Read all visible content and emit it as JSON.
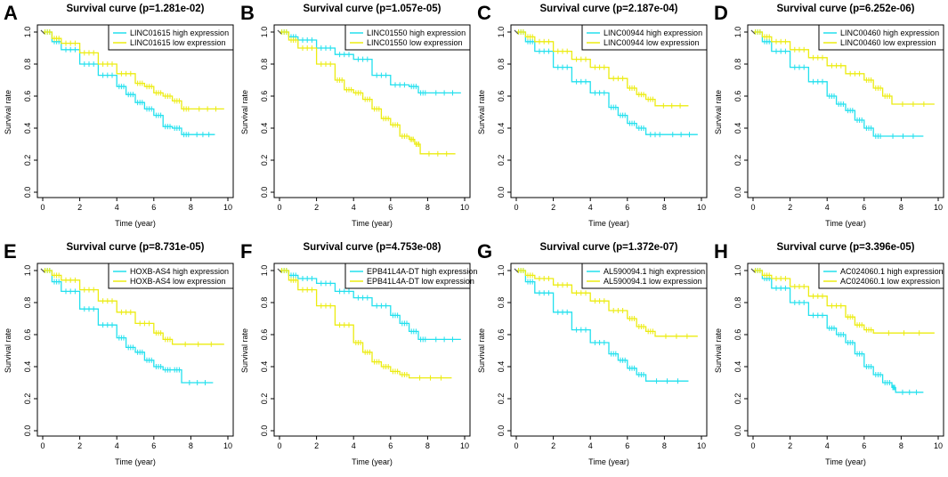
{
  "colors": {
    "high": "#22e0ee",
    "low": "#ecec10",
    "axis": "#000000"
  },
  "chart_data": [
    {
      "panel": "A",
      "type": "line",
      "title": "Survival curve (p=1.281e-02)",
      "xlabel": "Time (year)",
      "ylabel": "Survival rate",
      "xlim": [
        0,
        10
      ],
      "ylim": [
        0,
        1
      ],
      "xticks": [
        "0",
        "2",
        "4",
        "6",
        "8",
        "10"
      ],
      "yticks": [
        "0.0",
        "0.2",
        "0.4",
        "0.6",
        "0.8",
        "1.0"
      ],
      "legend_position": "top-right",
      "series": [
        {
          "name": "LINC01615 high expression",
          "color": "#22e0ee",
          "x": [
            0,
            0.5,
            1,
            2,
            3,
            4,
            4.5,
            5,
            5.5,
            6,
            6.5,
            7,
            7.5,
            8,
            9.3
          ],
          "y": [
            1.0,
            0.94,
            0.89,
            0.8,
            0.73,
            0.66,
            0.61,
            0.56,
            0.52,
            0.48,
            0.41,
            0.4,
            0.36,
            0.36,
            0.36
          ]
        },
        {
          "name": "LINC01615 low expression",
          "color": "#ecec10",
          "x": [
            0,
            0.5,
            1,
            2,
            3,
            4,
            5,
            5.5,
            6,
            6.5,
            7,
            7.5,
            8,
            9.8
          ],
          "y": [
            1.0,
            0.96,
            0.93,
            0.87,
            0.8,
            0.74,
            0.68,
            0.66,
            0.62,
            0.6,
            0.57,
            0.52,
            0.52,
            0.52
          ]
        }
      ]
    },
    {
      "panel": "B",
      "type": "line",
      "title": "Survival curve (p=1.057e-05)",
      "xlabel": "Time (year)",
      "ylabel": "Survival rate",
      "xlim": [
        0,
        10
      ],
      "ylim": [
        0,
        1
      ],
      "xticks": [
        "0",
        "2",
        "4",
        "6",
        "8",
        "10"
      ],
      "yticks": [
        "0.0",
        "0.2",
        "0.4",
        "0.6",
        "0.8",
        "1.0"
      ],
      "legend_position": "top-right",
      "series": [
        {
          "name": "LINC01550 high expression",
          "color": "#22e0ee",
          "x": [
            0,
            0.5,
            1,
            2,
            3,
            4,
            5,
            6,
            7,
            7.5,
            8,
            9.8
          ],
          "y": [
            1.0,
            0.97,
            0.95,
            0.9,
            0.86,
            0.83,
            0.73,
            0.67,
            0.66,
            0.62,
            0.62,
            0.62
          ]
        },
        {
          "name": "LINC01550 low expression",
          "color": "#ecec10",
          "x": [
            0,
            0.5,
            1,
            2,
            3,
            3.5,
            4,
            4.5,
            5,
            5.5,
            6,
            6.5,
            7,
            7.3,
            7.6,
            9.5
          ],
          "y": [
            1.0,
            0.95,
            0.9,
            0.8,
            0.7,
            0.64,
            0.62,
            0.58,
            0.52,
            0.46,
            0.42,
            0.35,
            0.33,
            0.3,
            0.24,
            0.24
          ]
        }
      ]
    },
    {
      "panel": "C",
      "type": "line",
      "title": "Survival curve (p=2.187e-04)",
      "xlabel": "Time (year)",
      "ylabel": "Survival rate",
      "xlim": [
        0,
        10
      ],
      "ylim": [
        0,
        1
      ],
      "xticks": [
        "0",
        "2",
        "4",
        "6",
        "8",
        "10"
      ],
      "yticks": [
        "0.0",
        "0.2",
        "0.4",
        "0.6",
        "0.8",
        "1.0"
      ],
      "legend_position": "top-right",
      "series": [
        {
          "name": "LINC00944 high expression",
          "color": "#22e0ee",
          "x": [
            0,
            0.5,
            1,
            2,
            3,
            4,
            5,
            5.5,
            6,
            6.5,
            7,
            8,
            9.8
          ],
          "y": [
            1.0,
            0.94,
            0.88,
            0.78,
            0.69,
            0.62,
            0.53,
            0.48,
            0.43,
            0.4,
            0.36,
            0.36,
            0.36
          ]
        },
        {
          "name": "LINC00944 low expression",
          "color": "#ecec10",
          "x": [
            0,
            0.5,
            1,
            2,
            3,
            4,
            5,
            6,
            6.5,
            7,
            7.5,
            9.3
          ],
          "y": [
            1.0,
            0.97,
            0.94,
            0.88,
            0.83,
            0.78,
            0.71,
            0.65,
            0.61,
            0.58,
            0.54,
            0.54
          ]
        }
      ]
    },
    {
      "panel": "D",
      "type": "line",
      "title": "Survival curve (p=6.252e-06)",
      "xlabel": "Time (year)",
      "ylabel": "Survival rate",
      "xlim": [
        0,
        10
      ],
      "ylim": [
        0,
        1
      ],
      "xticks": [
        "0",
        "2",
        "4",
        "6",
        "8",
        "10"
      ],
      "yticks": [
        "0.0",
        "0.2",
        "0.4",
        "0.6",
        "0.8",
        "1.0"
      ],
      "legend_position": "top-right",
      "series": [
        {
          "name": "LINC00460 high expression",
          "color": "#22e0ee",
          "x": [
            0,
            0.5,
            1,
            2,
            3,
            4,
            4.5,
            5,
            5.5,
            6,
            6.5,
            7,
            9.2
          ],
          "y": [
            1.0,
            0.94,
            0.88,
            0.78,
            0.69,
            0.6,
            0.55,
            0.51,
            0.45,
            0.4,
            0.35,
            0.35,
            0.35
          ]
        },
        {
          "name": "LINC00460 low expression",
          "color": "#ecec10",
          "x": [
            0,
            0.5,
            1,
            2,
            3,
            4,
            5,
            6,
            6.5,
            7,
            7.5,
            9.8
          ],
          "y": [
            1.0,
            0.97,
            0.94,
            0.89,
            0.84,
            0.79,
            0.74,
            0.7,
            0.65,
            0.6,
            0.55,
            0.55
          ]
        }
      ]
    },
    {
      "panel": "E",
      "type": "line",
      "title": "Survival curve (p=8.731e-05)",
      "xlabel": "Time (year)",
      "ylabel": "Survival rate",
      "xlim": [
        0,
        10
      ],
      "ylim": [
        0,
        1
      ],
      "xticks": [
        "0",
        "2",
        "4",
        "6",
        "8",
        "10"
      ],
      "yticks": [
        "0.0",
        "0.2",
        "0.4",
        "0.6",
        "0.8",
        "1.0"
      ],
      "legend_position": "top-right",
      "series": [
        {
          "name": "HOXB-AS4 high expression",
          "color": "#22e0ee",
          "x": [
            0,
            0.5,
            1,
            2,
            3,
            4,
            4.5,
            5,
            5.5,
            6,
            6.5,
            7,
            7.5,
            9.2
          ],
          "y": [
            1.0,
            0.93,
            0.87,
            0.76,
            0.66,
            0.58,
            0.52,
            0.49,
            0.44,
            0.4,
            0.38,
            0.38,
            0.3,
            0.3
          ]
        },
        {
          "name": "HOXB-AS4 low expression",
          "color": "#ecec10",
          "x": [
            0,
            0.5,
            1,
            2,
            3,
            4,
            5,
            6,
            6.5,
            7,
            9.8
          ],
          "y": [
            1.0,
            0.97,
            0.94,
            0.88,
            0.81,
            0.74,
            0.67,
            0.61,
            0.57,
            0.54,
            0.54
          ]
        }
      ]
    },
    {
      "panel": "F",
      "type": "line",
      "title": "Survival curve (p=4.753e-08)",
      "xlabel": "Time (year)",
      "ylabel": "Survival rate",
      "xlim": [
        0,
        10
      ],
      "ylim": [
        0,
        1
      ],
      "xticks": [
        "0",
        "2",
        "4",
        "6",
        "8",
        "10"
      ],
      "yticks": [
        "0.0",
        "0.2",
        "0.4",
        "0.6",
        "0.8",
        "1.0"
      ],
      "legend_position": "top-right",
      "series": [
        {
          "name": "EPB41L4A-DT high expression",
          "color": "#22e0ee",
          "x": [
            0,
            0.5,
            1,
            2,
            3,
            4,
            5,
            6,
            6.5,
            7,
            7.5,
            8,
            9.8
          ],
          "y": [
            1.0,
            0.97,
            0.95,
            0.92,
            0.87,
            0.83,
            0.78,
            0.72,
            0.67,
            0.62,
            0.57,
            0.57,
            0.57
          ]
        },
        {
          "name": "EPB41L4A-DT low expression",
          "color": "#ecec10",
          "x": [
            0,
            0.5,
            1,
            2,
            3,
            4,
            4.5,
            5,
            5.5,
            6,
            6.5,
            7,
            9.3
          ],
          "y": [
            1.0,
            0.94,
            0.88,
            0.78,
            0.66,
            0.55,
            0.49,
            0.43,
            0.4,
            0.37,
            0.35,
            0.33,
            0.33
          ]
        }
      ]
    },
    {
      "panel": "G",
      "type": "line",
      "title": "Survival curve (p=1.372e-07)",
      "xlabel": "Time (year)",
      "ylabel": "Survival rate",
      "xlim": [
        0,
        10
      ],
      "ylim": [
        0,
        1
      ],
      "xticks": [
        "0",
        "2",
        "4",
        "6",
        "8",
        "10"
      ],
      "yticks": [
        "0.0",
        "0.2",
        "0.4",
        "0.6",
        "0.8",
        "1.0"
      ],
      "legend_position": "top-right",
      "series": [
        {
          "name": "AL590094.1 high expression",
          "color": "#22e0ee",
          "x": [
            0,
            0.5,
            1,
            2,
            3,
            4,
            5,
            5.5,
            6,
            6.5,
            7,
            9.3
          ],
          "y": [
            1.0,
            0.93,
            0.86,
            0.74,
            0.63,
            0.55,
            0.48,
            0.44,
            0.39,
            0.35,
            0.31,
            0.31
          ]
        },
        {
          "name": "AL590094.1 low expression",
          "color": "#ecec10",
          "x": [
            0,
            0.5,
            1,
            2,
            3,
            4,
            5,
            6,
            6.5,
            7,
            7.5,
            9.8
          ],
          "y": [
            1.0,
            0.97,
            0.95,
            0.91,
            0.86,
            0.81,
            0.75,
            0.7,
            0.65,
            0.62,
            0.59,
            0.59
          ]
        }
      ]
    },
    {
      "panel": "H",
      "type": "line",
      "title": "Survival curve (p=3.396e-05)",
      "xlabel": "Time (year)",
      "ylabel": "Survival rate",
      "xlim": [
        0,
        10
      ],
      "ylim": [
        0,
        1
      ],
      "xticks": [
        "0",
        "2",
        "4",
        "6",
        "8",
        "10"
      ],
      "yticks": [
        "0.0",
        "0.2",
        "0.4",
        "0.6",
        "0.8",
        "1.0"
      ],
      "legend_position": "top-right",
      "series": [
        {
          "name": "AC024060.1 high expression",
          "color": "#22e0ee",
          "x": [
            0,
            0.5,
            1,
            2,
            3,
            4,
            4.5,
            5,
            5.5,
            6,
            6.5,
            7,
            7.5,
            7.7,
            9.2
          ],
          "y": [
            1.0,
            0.95,
            0.89,
            0.8,
            0.72,
            0.64,
            0.6,
            0.55,
            0.48,
            0.4,
            0.35,
            0.3,
            0.27,
            0.24,
            0.24
          ]
        },
        {
          "name": "AC024060.1 low expression",
          "color": "#ecec10",
          "x": [
            0,
            0.5,
            1,
            2,
            3,
            4,
            5,
            5.5,
            6,
            6.5,
            9.8
          ],
          "y": [
            1.0,
            0.97,
            0.95,
            0.9,
            0.84,
            0.78,
            0.71,
            0.66,
            0.63,
            0.61,
            0.61
          ]
        }
      ]
    }
  ]
}
